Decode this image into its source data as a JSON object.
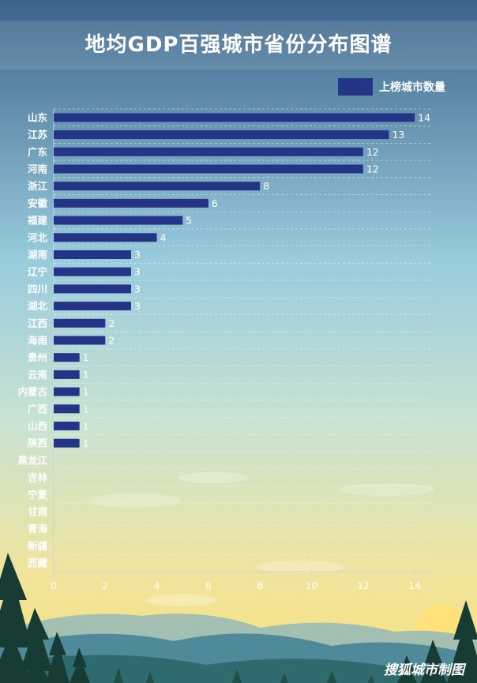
{
  "chart_data": {
    "type": "bar",
    "orientation": "horizontal",
    "title": "地均GDP百强城市省份分布图谱",
    "categories": [
      "山东",
      "江苏",
      "广东",
      "河南",
      "浙江",
      "安徽",
      "福建",
      "河北",
      "湖南",
      "辽宁",
      "四川",
      "湖北",
      "江西",
      "海南",
      "贵州",
      "云南",
      "内蒙古",
      "广西",
      "山西",
      "陕西",
      "黑龙江",
      "吉林",
      "宁夏",
      "甘肃",
      "青海",
      "新疆",
      "西藏"
    ],
    "series": [
      {
        "name": "上榜城市数量",
        "values": [
          14,
          13,
          12,
          12,
          8,
          6,
          5,
          4,
          3,
          3,
          3,
          3,
          2,
          2,
          1,
          1,
          1,
          1,
          1,
          1,
          0,
          0,
          0,
          0,
          0,
          0,
          0
        ]
      }
    ],
    "xlim": [
      0,
      14.7
    ],
    "xticks": [
      0,
      2,
      4,
      6,
      8,
      10,
      12,
      14
    ],
    "grid": true,
    "legend_position": "top-right",
    "bar_color": "#243486",
    "data_labels": true
  },
  "footer": {
    "credit": "搜狐城市制图"
  },
  "colors": {
    "sky_top": "#3f6a92",
    "sky_mid": "#9fd0de",
    "sky_bottom": "#f4e28c",
    "sun": "#ffe27a",
    "tree": "#173c34",
    "hill": "#4f8a9a"
  }
}
